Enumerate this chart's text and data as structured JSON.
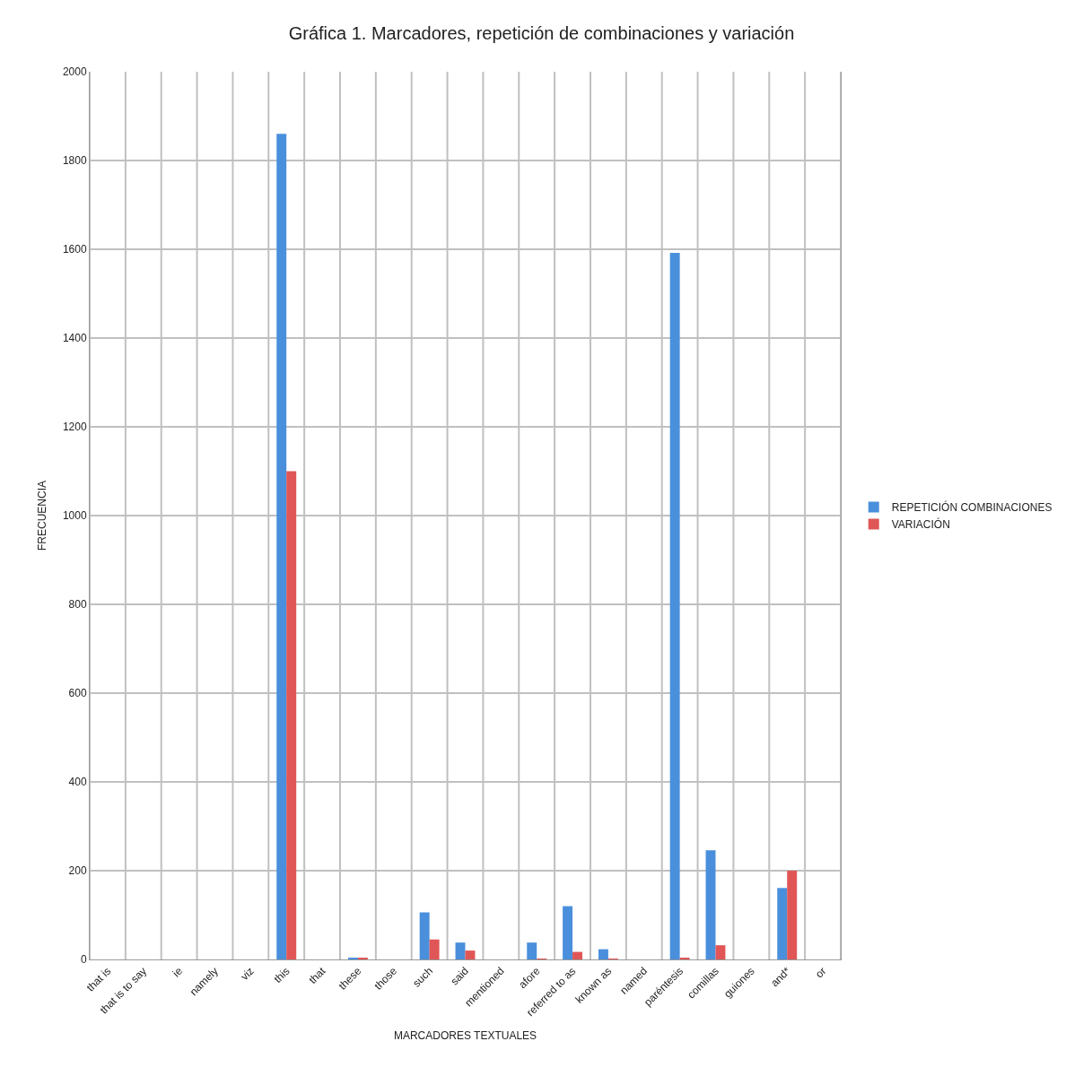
{
  "chart_data": {
    "type": "bar",
    "title": "Gráfica 1. Marcadores, repetición de combinaciones y variación",
    "xlabel": "MARCADORES TEXTUALES",
    "ylabel": "FRECUENCIA",
    "categories": [
      "that is",
      "that is to say",
      "ie",
      "namely",
      "viz",
      "this",
      "that",
      "these",
      "those",
      "such",
      "said",
      "mentioned",
      "afore",
      "referred to as",
      "known as",
      "named",
      "paréntesis",
      "comillas",
      "guiones",
      "and*",
      "or"
    ],
    "series": [
      {
        "name": "REPETICIÓN COMBINACIONES",
        "color": "#4a8fdc",
        "values": [
          0,
          0,
          0,
          0,
          0,
          1860,
          0,
          3,
          0,
          106,
          38,
          0,
          38,
          120,
          23,
          0,
          1592,
          246,
          0,
          161,
          0
        ]
      },
      {
        "name": "VARIACIÓN",
        "color": "#e05656",
        "values": [
          0,
          0,
          0,
          0,
          0,
          1100,
          0,
          3,
          0,
          45,
          20,
          0,
          1,
          17,
          1,
          0,
          3,
          32,
          0,
          200,
          0
        ]
      }
    ],
    "ylim": [
      0,
      2000
    ],
    "yticks": [
      0,
      200,
      400,
      600,
      800,
      1000,
      1200,
      1400,
      1600,
      1800,
      2000
    ],
    "grid": true,
    "legend": "right"
  }
}
